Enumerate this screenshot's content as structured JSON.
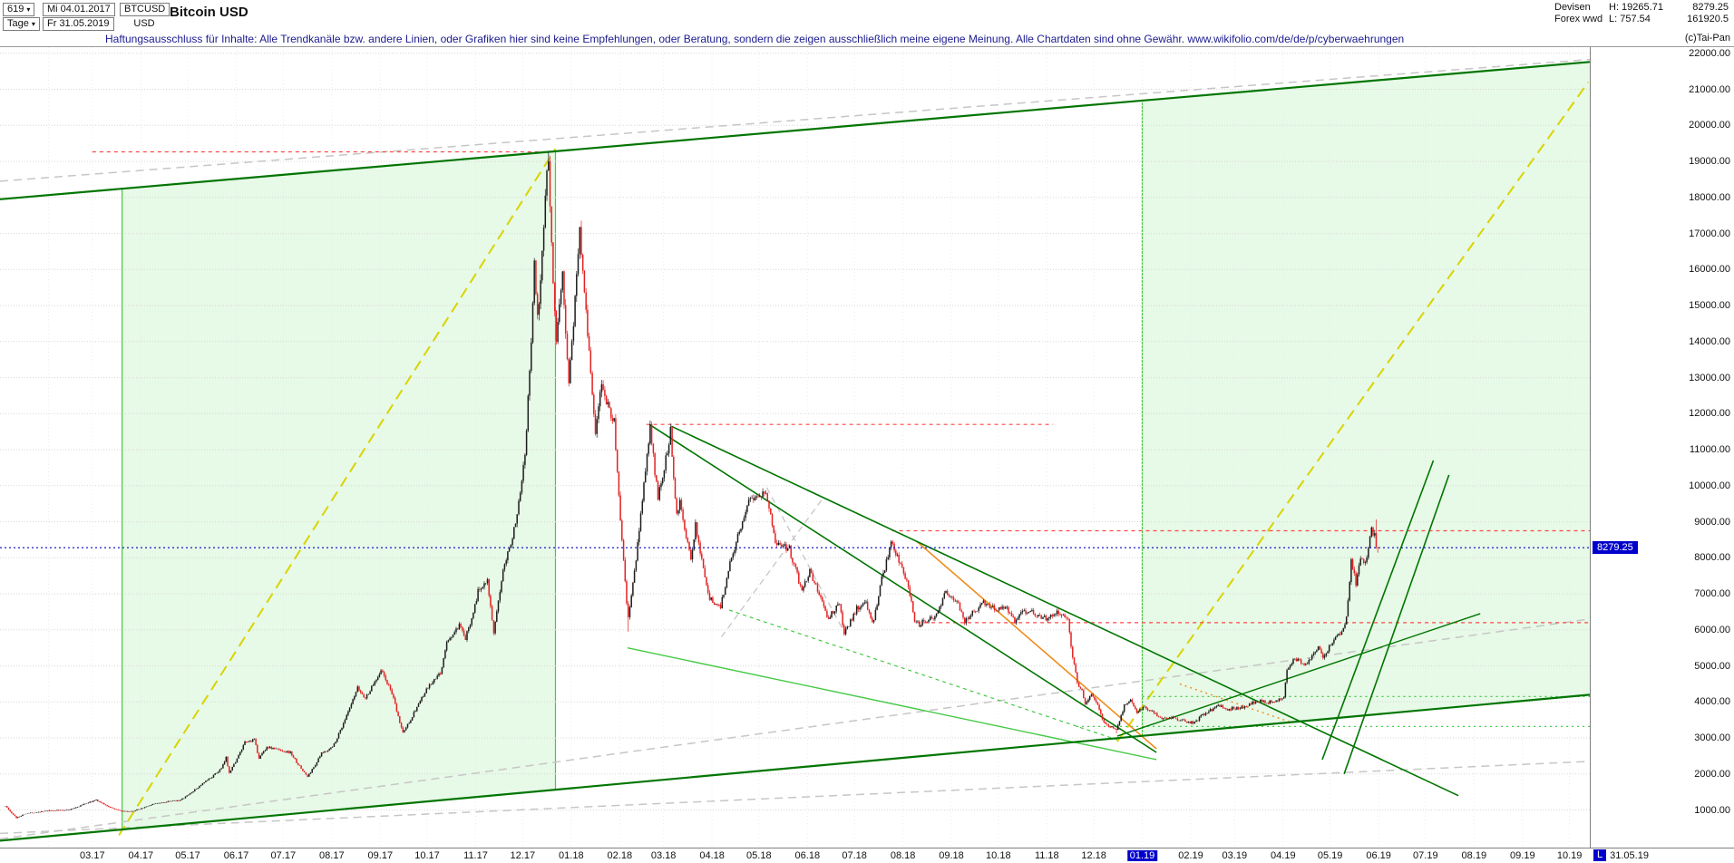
{
  "icons": {
    "dropdown": "▾"
  },
  "colors": {
    "up": "#1c1c1c",
    "down": "#e32121",
    "dark_green": "#007500",
    "light_green": "#44c944",
    "yellow": "#d9d400",
    "gray_dash": "#c6c6c6",
    "red_dash": "#ff4646",
    "orange": "#ef8c1f",
    "price_line": "#0000cc",
    "channel_fill": "rgba(120,220,120,0.18)",
    "grid": "#d7d7d7",
    "disclaimer": "#1b1b8f",
    "tag_bg": "#0000cc"
  },
  "header": {
    "bars_count": "619",
    "timeframe": "Tage",
    "date_from": "Mi 04.01.2017",
    "date_to": "Fr 31.05.2019",
    "symbol": "BTCUSD",
    "currency": "USD",
    "title": "Bitcoin USD",
    "market": "Devisen",
    "market2": "Forex wwd",
    "high_label": "H: 19265.71",
    "low_label": "L: 757.54",
    "last_price": "8279.25",
    "volume": "161920.5",
    "copyright": "(c)Tai-Pan"
  },
  "disclaimer": "Haftungsausschluss für Inhalte: Alle Trendkanäle bzw. andere Linien, oder Grafiken hier sind keine Empfehlungen, oder Beratung, sondern die zeigen ausschließlich meine eigene Meinung. Alle Chartdaten sind ohne Gewähr.  www.wikifolio.com/de/de/p/cyberwaehrungen",
  "price_tag": "8279.25",
  "last_marker": {
    "flag": "L",
    "date": "31.05.19"
  },
  "chart_data": {
    "type": "candlestick-ohlc",
    "symbol": "BTCUSD",
    "title": "Bitcoin USD",
    "period_start": "2017-01-04",
    "period_end": "2019-05-31",
    "axis_end": "2019-10-14",
    "last_close": 8279.25,
    "overall_high": 19265.71,
    "overall_low": 757.54,
    "y_axis": {
      "min": 1000,
      "max": 22000,
      "step": 1000
    },
    "x_labels": [
      "03.17",
      "04.17",
      "05.17",
      "06.17",
      "07.17",
      "08.17",
      "09.17",
      "10.17",
      "11.17",
      "12.17",
      "01.18",
      "02.18",
      "03.18",
      "04.18",
      "05.18",
      "06.18",
      "07.18",
      "08.18",
      "09.18",
      "10.18",
      "11.18",
      "12.18",
      "01.19",
      "02.19",
      "03.19",
      "04.19",
      "05.19",
      "06.19",
      "07.19",
      "08.19",
      "09.19",
      "10.19"
    ],
    "highlighted_label": "01.19",
    "anchors": [
      [
        "2017-01-04",
        1120
      ],
      [
        "2017-01-08",
        910
      ],
      [
        "2017-01-11",
        790
      ],
      [
        "2017-01-17",
        905
      ],
      [
        "2017-02-01",
        985
      ],
      [
        "2017-02-14",
        1010
      ],
      [
        "2017-02-24",
        1180
      ],
      [
        "2017-03-03",
        1280
      ],
      [
        "2017-03-10",
        1115
      ],
      [
        "2017-03-18",
        975
      ],
      [
        "2017-03-25",
        950
      ],
      [
        "2017-04-10",
        1190
      ],
      [
        "2017-04-26",
        1280
      ],
      [
        "2017-05-09",
        1700
      ],
      [
        "2017-05-22",
        2150
      ],
      [
        "2017-05-25",
        2450
      ],
      [
        "2017-05-27",
        2050
      ],
      [
        "2017-06-06",
        2870
      ],
      [
        "2017-06-12",
        2950
      ],
      [
        "2017-06-15",
        2450
      ],
      [
        "2017-06-20",
        2750
      ],
      [
        "2017-07-05",
        2600
      ],
      [
        "2017-07-16",
        1930
      ],
      [
        "2017-07-25",
        2570
      ],
      [
        "2017-08-01",
        2750
      ],
      [
        "2017-08-08",
        3420
      ],
      [
        "2017-08-17",
        4380
      ],
      [
        "2017-08-22",
        4100
      ],
      [
        "2017-09-01",
        4900
      ],
      [
        "2017-09-08",
        4250
      ],
      [
        "2017-09-15",
        3150
      ],
      [
        "2017-09-25",
        3950
      ],
      [
        "2017-10-01",
        4400
      ],
      [
        "2017-10-09",
        4800
      ],
      [
        "2017-10-13",
        5650
      ],
      [
        "2017-10-21",
        6100
      ],
      [
        "2017-10-25",
        5750
      ],
      [
        "2017-11-02",
        7050
      ],
      [
        "2017-11-08",
        7450
      ],
      [
        "2017-11-12",
        5880
      ],
      [
        "2017-11-18",
        7750
      ],
      [
        "2017-11-25",
        8750
      ],
      [
        "2017-11-29",
        9900
      ],
      [
        "2017-12-02",
        10950
      ],
      [
        "2017-12-06",
        14000
      ],
      [
        "2017-12-08",
        16250
      ],
      [
        "2017-12-10",
        14600
      ],
      [
        "2017-12-13",
        16450
      ],
      [
        "2017-12-16",
        18900
      ],
      [
        "2017-12-17",
        19050
      ],
      [
        "2017-12-22",
        13900
      ],
      [
        "2017-12-26",
        15900
      ],
      [
        "2017-12-30",
        12900
      ],
      [
        "2018-01-06",
        17150
      ],
      [
        "2018-01-10",
        14950
      ],
      [
        "2018-01-16",
        11500
      ],
      [
        "2018-01-20",
        12800
      ],
      [
        "2018-01-28",
        11750
      ],
      [
        "2018-02-01",
        9100
      ],
      [
        "2018-02-06",
        6300
      ],
      [
        "2018-02-16",
        10100
      ],
      [
        "2018-02-20",
        11600
      ],
      [
        "2018-02-25",
        9650
      ],
      [
        "2018-03-05",
        11500
      ],
      [
        "2018-03-09",
        9250
      ],
      [
        "2018-03-11",
        9600
      ],
      [
        "2018-03-18",
        7900
      ],
      [
        "2018-03-21",
        8950
      ],
      [
        "2018-03-30",
        6850
      ],
      [
        "2018-04-06",
        6650
      ],
      [
        "2018-04-12",
        7900
      ],
      [
        "2018-04-24",
        9650
      ],
      [
        "2018-05-05",
        9850
      ],
      [
        "2018-05-11",
        8450
      ],
      [
        "2018-05-20",
        8250
      ],
      [
        "2018-05-28",
        7100
      ],
      [
        "2018-06-02",
        7650
      ],
      [
        "2018-06-10",
        6800
      ],
      [
        "2018-06-13",
        6300
      ],
      [
        "2018-06-21",
        6750
      ],
      [
        "2018-06-24",
        5900
      ],
      [
        "2018-07-02",
        6600
      ],
      [
        "2018-07-08",
        6750
      ],
      [
        "2018-07-12",
        6150
      ],
      [
        "2018-07-18",
        7400
      ],
      [
        "2018-07-24",
        8400
      ],
      [
        "2018-07-31",
        7750
      ],
      [
        "2018-08-05",
        7000
      ],
      [
        "2018-08-08",
        6300
      ],
      [
        "2018-08-11",
        6150
      ],
      [
        "2018-08-14",
        6250
      ],
      [
        "2018-08-22",
        6400
      ],
      [
        "2018-08-28",
        7100
      ],
      [
        "2018-09-05",
        6700
      ],
      [
        "2018-09-09",
        6250
      ],
      [
        "2018-09-15",
        6530
      ],
      [
        "2018-09-21",
        6750
      ],
      [
        "2018-09-29",
        6600
      ],
      [
        "2018-10-06",
        6580
      ],
      [
        "2018-10-11",
        6250
      ],
      [
        "2018-10-15",
        6550
      ],
      [
        "2018-10-23",
        6480
      ],
      [
        "2018-10-31",
        6320
      ],
      [
        "2018-11-07",
        6500
      ],
      [
        "2018-11-14",
        6350
      ],
      [
        "2018-11-16",
        5550
      ],
      [
        "2018-11-20",
        4550
      ],
      [
        "2018-11-23",
        4300
      ],
      [
        "2018-11-25",
        3950
      ],
      [
        "2018-11-29",
        4250
      ],
      [
        "2018-12-03",
        3900
      ],
      [
        "2018-12-07",
        3420
      ],
      [
        "2018-12-15",
        3230
      ],
      [
        "2018-12-20",
        3900
      ],
      [
        "2018-12-24",
        4050
      ],
      [
        "2018-12-28",
        3700
      ],
      [
        "2019-01-02",
        3850
      ],
      [
        "2019-01-10",
        3630
      ],
      [
        "2019-01-14",
        3550
      ],
      [
        "2019-01-20",
        3560
      ],
      [
        "2019-01-28",
        3450
      ],
      [
        "2019-02-03",
        3420
      ],
      [
        "2019-02-08",
        3650
      ],
      [
        "2019-02-18",
        3900
      ],
      [
        "2019-02-24",
        3800
      ],
      [
        "2019-03-05",
        3850
      ],
      [
        "2019-03-16",
        4030
      ],
      [
        "2019-03-21",
        3980
      ],
      [
        "2019-03-30",
        4100
      ],
      [
        "2019-04-01",
        4150
      ],
      [
        "2019-04-03",
        4950
      ],
      [
        "2019-04-08",
        5200
      ],
      [
        "2019-04-15",
        5050
      ],
      [
        "2019-04-23",
        5550
      ],
      [
        "2019-04-26",
        5200
      ],
      [
        "2019-05-03",
        5750
      ],
      [
        "2019-05-08",
        5950
      ],
      [
        "2019-05-11",
        6350
      ],
      [
        "2019-05-14",
        7980
      ],
      [
        "2019-05-17",
        7250
      ],
      [
        "2019-05-20",
        8000
      ],
      [
        "2019-05-23",
        7850
      ],
      [
        "2019-05-27",
        8750
      ],
      [
        "2019-05-29",
        8650
      ],
      [
        "2019-05-30",
        8320
      ],
      [
        "2019-05-31",
        8279.25
      ]
    ],
    "specials": {
      "2017-01-11": {
        "low": 757.54
      },
      "2017-12-17": {
        "high": 19265.71
      },
      "2018-02-06": {
        "low": 5950
      },
      "2018-12-15": {
        "low": 3128
      },
      "2019-05-30": {
        "high": 9065
      }
    },
    "channel": {
      "upper": [
        [
          "2017-01-01",
          17950
        ],
        [
          "2019-10-14",
          21760
        ]
      ],
      "lower": [
        [
          "2017-01-01",
          150
        ],
        [
          "2019-10-14",
          4200
        ]
      ]
    },
    "regions": [
      {
        "name": "bull-channel-2017",
        "x1": "2017-03-20",
        "x2": "2017-12-22",
        "edges": "both"
      },
      {
        "name": "projection-channel-2019",
        "x1": "2019-01-01",
        "x2": "2019-10-14",
        "edges": "left"
      }
    ],
    "lines": [
      {
        "name": "gray-upper-parallel",
        "color": "gray_dash",
        "width": 1.5,
        "dash": "9,6",
        "pts": [
          [
            "2017-01-01",
            18450
          ],
          [
            "2019-10-14",
            21830
          ]
        ]
      },
      {
        "name": "gray-lower-shallow",
        "color": "gray_dash",
        "width": 1.5,
        "dash": "9,6",
        "pts": [
          [
            "2017-01-01",
            350
          ],
          [
            "2019-10-14",
            2350
          ]
        ]
      },
      {
        "name": "gray-mid-diagonal",
        "color": "gray_dash",
        "width": 1.5,
        "dash": "9,6",
        "pts": [
          [
            "2017-01-01",
            200
          ],
          [
            "2019-10-14",
            6300
          ]
        ]
      },
      {
        "name": "gray-wedge-up-2018",
        "color": "gray_dash",
        "width": 1.3,
        "dash": "7,5",
        "pts": [
          [
            "2018-04-07",
            5800
          ],
          [
            "2018-06-10",
            9600
          ]
        ]
      },
      {
        "name": "gray-wedge-down-2018",
        "color": "gray_dash",
        "width": 1.3,
        "dash": "7,5",
        "pts": [
          [
            "2018-05-06",
            9950
          ],
          [
            "2018-06-25",
            5900
          ]
        ]
      },
      {
        "name": "parabolic-2017",
        "color": "yellow",
        "width": 2,
        "dash": "12,7",
        "pts": [
          [
            "2017-03-18",
            300
          ],
          [
            "2017-12-22",
            19350
          ]
        ]
      },
      {
        "name": "parabolic-projection-2019",
        "color": "yellow",
        "width": 2,
        "dash": "12,7",
        "pts": [
          [
            "2018-12-16",
            2900
          ],
          [
            "2019-10-13",
            21200
          ]
        ]
      },
      {
        "name": "wedge-support",
        "color": "light_green",
        "width": 1.4,
        "pts": [
          [
            "2018-02-06",
            5500
          ],
          [
            "2019-01-10",
            2400
          ]
        ]
      },
      {
        "name": "wedge-support-2",
        "color": "light_green",
        "width": 1.2,
        "dash": "4,4",
        "pts": [
          [
            "2018-04-12",
            6550
          ],
          [
            "2018-12-16",
            2950
          ]
        ]
      },
      {
        "name": "support-horizontal-3300",
        "color": "light_green",
        "width": 1.3,
        "dash": "2,4",
        "pts": [
          [
            "2018-11-20",
            3320
          ],
          [
            "2019-10-14",
            3320
          ]
        ]
      },
      {
        "name": "support-horizontal-4150",
        "color": "light_green",
        "width": 1.3,
        "dash": "2,4",
        "pts": [
          [
            "2019-01-01",
            4150
          ],
          [
            "2019-10-14",
            4150
          ]
        ]
      },
      {
        "name": "orange-downtrend",
        "color": "orange",
        "width": 1.6,
        "pts": [
          [
            "2018-08-10",
            8450
          ],
          [
            "2019-01-10",
            2700
          ]
        ]
      },
      {
        "name": "orange-dotted-ext",
        "color": "orange",
        "width": 1.4,
        "dash": "2,4",
        "pts": [
          [
            "2019-01-25",
            4500
          ],
          [
            "2019-04-05",
            3450
          ]
        ]
      },
      {
        "name": "ath-resistance",
        "color": "red_dash",
        "width": 1.2,
        "dash": "4,4",
        "pts": [
          [
            "2017-03-01",
            19265
          ],
          [
            "2017-12-20",
            19265
          ]
        ]
      },
      {
        "name": "resistance-11700",
        "color": "red_dash",
        "width": 1.2,
        "dash": "4,4",
        "pts": [
          [
            "2018-02-18",
            11700
          ],
          [
            "2018-11-05",
            11700
          ]
        ]
      },
      {
        "name": "resistance-8750",
        "color": "red_dash",
        "width": 1.2,
        "dash": "4,4",
        "pts": [
          [
            "2018-07-25",
            8750
          ],
          [
            "2019-10-14",
            8750
          ]
        ]
      },
      {
        "name": "support-6200",
        "color": "red_dash",
        "width": 1.2,
        "dash": "4,4",
        "pts": [
          [
            "2018-08-10",
            6200
          ],
          [
            "2019-10-14",
            6200
          ]
        ]
      },
      {
        "name": "downtrend-major",
        "color": "dark_green",
        "width": 1.6,
        "pts": [
          [
            "2018-02-20",
            11700
          ],
          [
            "2019-01-10",
            2600
          ]
        ]
      },
      {
        "name": "downtrend-long",
        "color": "dark_green",
        "width": 1.6,
        "pts": [
          [
            "2018-03-06",
            11650
          ],
          [
            "2019-07-22",
            1400
          ]
        ]
      },
      {
        "name": "rally-support-steep-1",
        "color": "dark_green",
        "width": 1.6,
        "pts": [
          [
            "2019-04-26",
            2400
          ],
          [
            "2019-07-06",
            10700
          ]
        ]
      },
      {
        "name": "rally-support-steep-2",
        "color": "dark_green",
        "width": 1.6,
        "pts": [
          [
            "2019-05-10",
            2000
          ],
          [
            "2019-07-16",
            10300
          ]
        ]
      },
      {
        "name": "recovery-trend",
        "color": "dark_green",
        "width": 1.4,
        "pts": [
          [
            "2018-12-16",
            3050
          ],
          [
            "2019-08-05",
            6450
          ]
        ]
      }
    ]
  }
}
